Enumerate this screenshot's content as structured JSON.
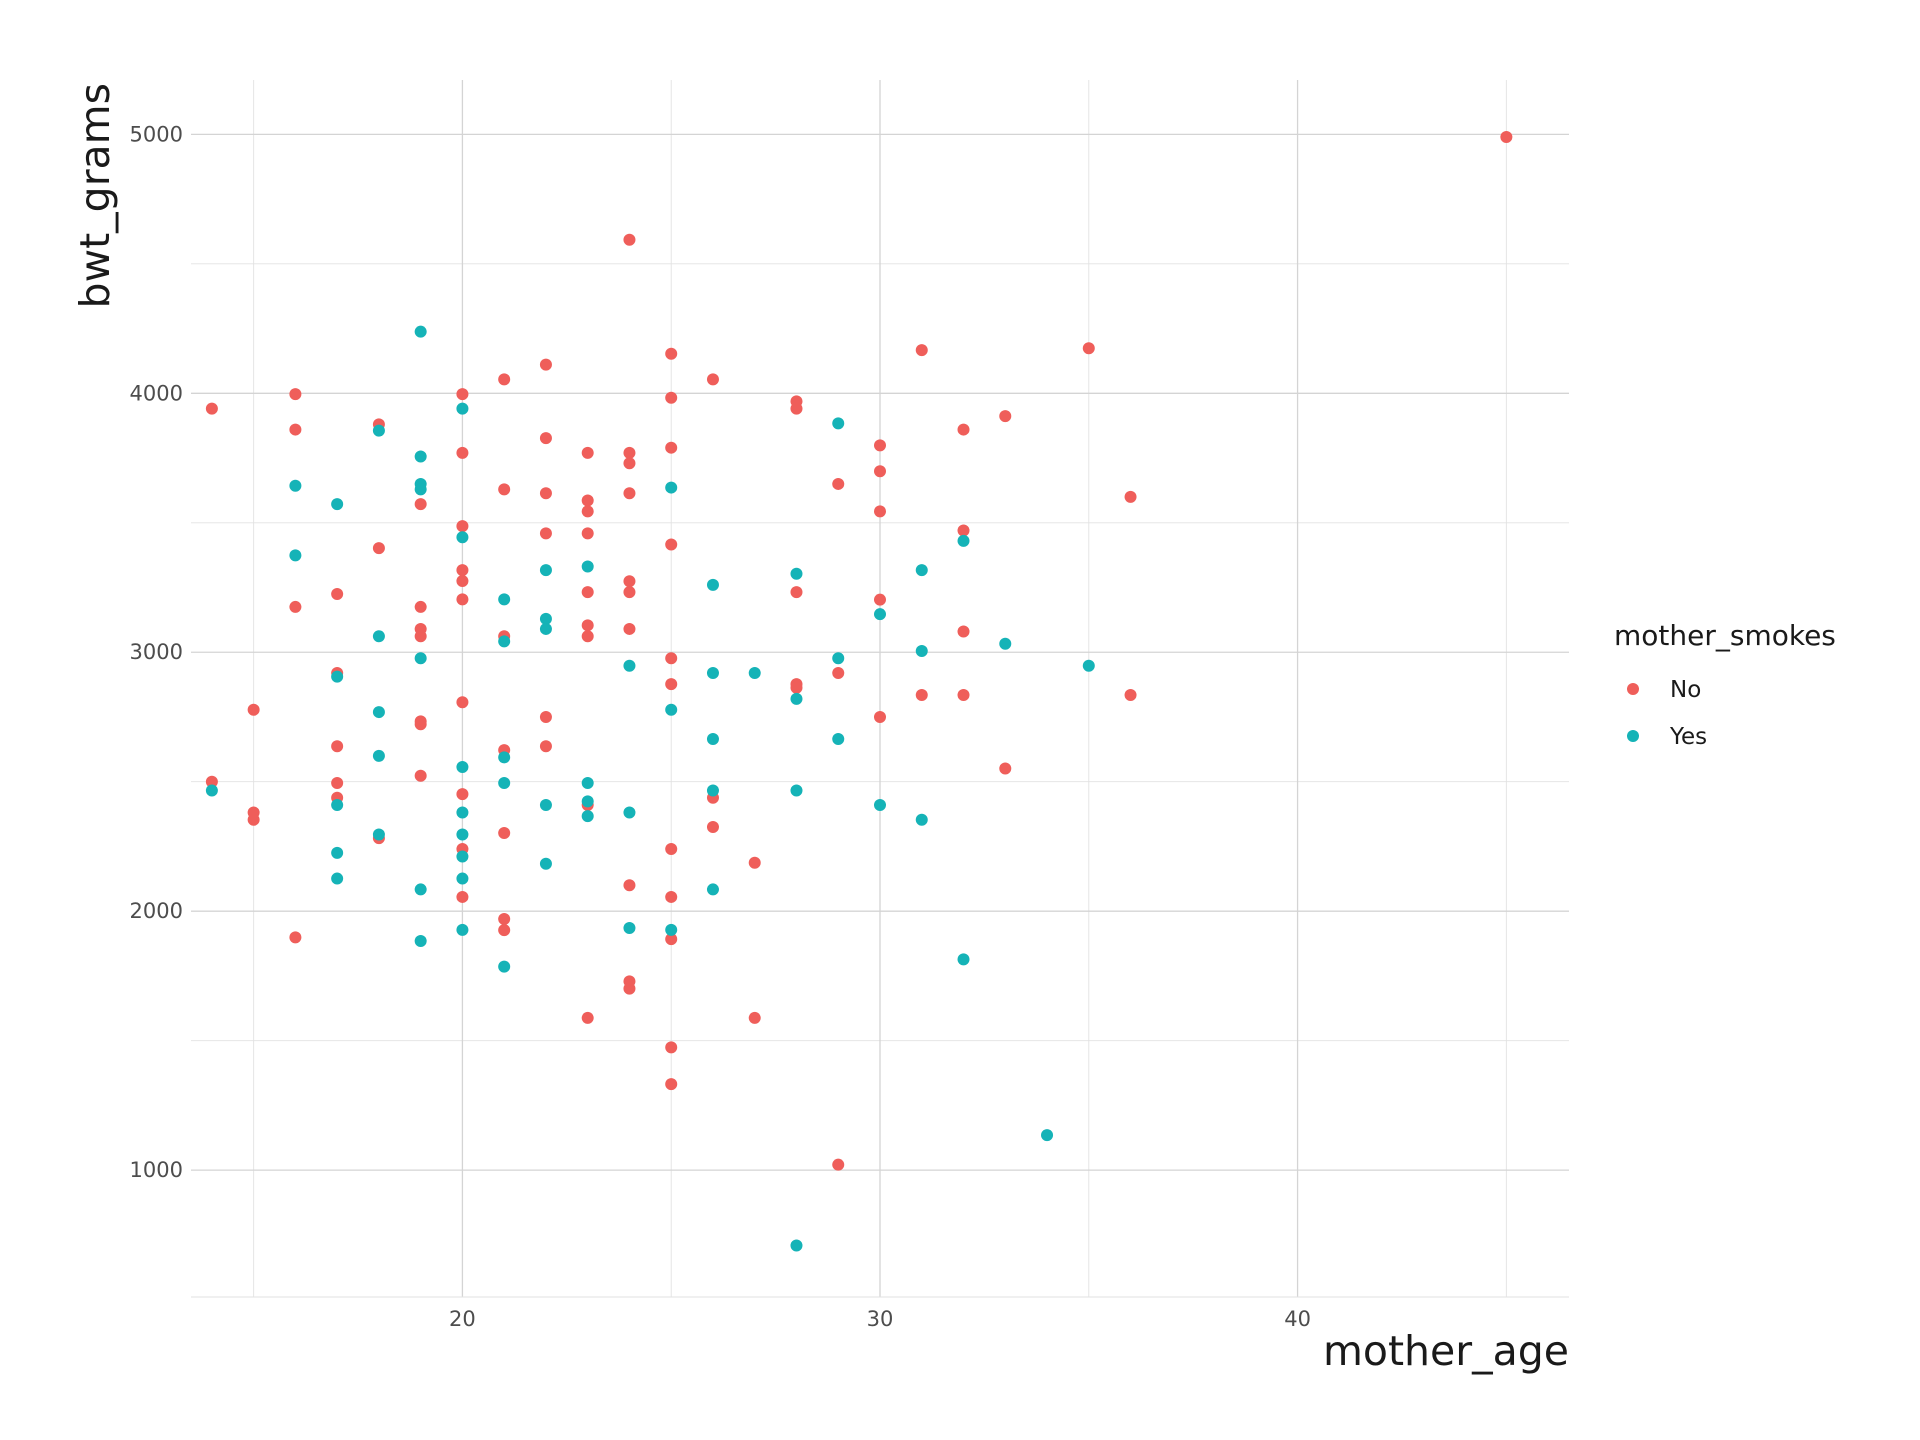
{
  "chart_data": {
    "type": "scatter",
    "title": "",
    "xlabel": "mother_age",
    "ylabel": "bwt_grams",
    "xlim": [
      13.5,
      46.5
    ],
    "ylim": [
      510,
      5210
    ],
    "x_ticks": [
      20,
      30,
      40
    ],
    "x_tick_labels": [
      "20",
      "30",
      "40"
    ],
    "x_minor_ticks": [
      15,
      25,
      35,
      45
    ],
    "y_ticks": [
      1000,
      2000,
      3000,
      4000,
      5000
    ],
    "y_tick_labels": [
      "1000",
      "2000",
      "3000",
      "4000",
      "5000"
    ],
    "y_minor_ticks": [
      1500,
      2500,
      3500,
      4500
    ],
    "grid": true,
    "legend": {
      "title": "mother_smokes",
      "position": "right",
      "entries": [
        "No",
        "Yes"
      ]
    },
    "colors": {
      "No": "#ef5e5a",
      "Yes": "#15b3b7"
    },
    "series": [
      {
        "name": "No",
        "points": [
          [
            14,
            3941
          ],
          [
            14,
            2500
          ],
          [
            15,
            2778
          ],
          [
            15,
            2381
          ],
          [
            15,
            2353
          ],
          [
            16,
            3997
          ],
          [
            16,
            3860
          ],
          [
            16,
            3175
          ],
          [
            16,
            1899
          ],
          [
            17,
            3225
          ],
          [
            17,
            2920
          ],
          [
            17,
            2637
          ],
          [
            17,
            2495
          ],
          [
            17,
            2438
          ],
          [
            18,
            3880
          ],
          [
            18,
            3402
          ],
          [
            18,
            2282
          ],
          [
            19,
            3572
          ],
          [
            19,
            3175
          ],
          [
            19,
            3090
          ],
          [
            19,
            3062
          ],
          [
            19,
            2733
          ],
          [
            19,
            2722
          ],
          [
            19,
            2523
          ],
          [
            20,
            3997
          ],
          [
            20,
            3770
          ],
          [
            20,
            3487
          ],
          [
            20,
            3317
          ],
          [
            20,
            3275
          ],
          [
            20,
            3204
          ],
          [
            20,
            2807
          ],
          [
            20,
            2452
          ],
          [
            20,
            2240
          ],
          [
            20,
            2055
          ],
          [
            21,
            4054
          ],
          [
            21,
            3629
          ],
          [
            21,
            3062
          ],
          [
            21,
            2622
          ],
          [
            21,
            2302
          ],
          [
            21,
            1970
          ],
          [
            21,
            1927
          ],
          [
            22,
            4111
          ],
          [
            22,
            3827
          ],
          [
            22,
            3614
          ],
          [
            22,
            3459
          ],
          [
            22,
            2750
          ],
          [
            22,
            2637
          ],
          [
            23,
            3770
          ],
          [
            23,
            3586
          ],
          [
            23,
            3544
          ],
          [
            23,
            3459
          ],
          [
            23,
            3232
          ],
          [
            23,
            3104
          ],
          [
            23,
            3062
          ],
          [
            23,
            2410
          ],
          [
            23,
            1588
          ],
          [
            24,
            4593
          ],
          [
            24,
            3770
          ],
          [
            24,
            3730
          ],
          [
            24,
            3614
          ],
          [
            24,
            3274
          ],
          [
            24,
            3232
          ],
          [
            24,
            3090
          ],
          [
            24,
            2100
          ],
          [
            24,
            1729
          ],
          [
            24,
            1701
          ],
          [
            25,
            4153
          ],
          [
            25,
            3983
          ],
          [
            25,
            3790
          ],
          [
            25,
            3416
          ],
          [
            25,
            2977
          ],
          [
            25,
            2877
          ],
          [
            25,
            2240
          ],
          [
            25,
            2055
          ],
          [
            25,
            1892
          ],
          [
            25,
            1474
          ],
          [
            25,
            1332
          ],
          [
            26,
            4054
          ],
          [
            26,
            2438
          ],
          [
            26,
            2325
          ],
          [
            27,
            2187
          ],
          [
            27,
            1588
          ],
          [
            28,
            3969
          ],
          [
            28,
            3941
          ],
          [
            28,
            3232
          ],
          [
            28,
            2877
          ],
          [
            28,
            2863
          ],
          [
            29,
            3650
          ],
          [
            29,
            2920
          ],
          [
            29,
            1021
          ],
          [
            30,
            3799
          ],
          [
            30,
            3699
          ],
          [
            30,
            3544
          ],
          [
            30,
            3203
          ],
          [
            30,
            2750
          ],
          [
            31,
            4167
          ],
          [
            31,
            2835
          ],
          [
            32,
            3860
          ],
          [
            32,
            3470
          ],
          [
            32,
            3080
          ],
          [
            32,
            2835
          ],
          [
            33,
            3912
          ],
          [
            33,
            2551
          ],
          [
            35,
            4174
          ],
          [
            36,
            3600
          ],
          [
            36,
            2835
          ],
          [
            45,
            4990
          ]
        ]
      },
      {
        "name": "Yes",
        "points": [
          [
            14,
            2466
          ],
          [
            16,
            3643
          ],
          [
            16,
            3374
          ],
          [
            17,
            3572
          ],
          [
            17,
            2906
          ],
          [
            17,
            2410
          ],
          [
            17,
            2225
          ],
          [
            17,
            2126
          ],
          [
            18,
            3856
          ],
          [
            18,
            3062
          ],
          [
            18,
            2769
          ],
          [
            18,
            2600
          ],
          [
            18,
            2296
          ],
          [
            19,
            4238
          ],
          [
            19,
            3756
          ],
          [
            19,
            3650
          ],
          [
            19,
            3629
          ],
          [
            19,
            2977
          ],
          [
            19,
            2084
          ],
          [
            19,
            1885
          ],
          [
            20,
            3941
          ],
          [
            20,
            3444
          ],
          [
            20,
            2557
          ],
          [
            20,
            2381
          ],
          [
            20,
            2296
          ],
          [
            20,
            2211
          ],
          [
            20,
            2126
          ],
          [
            20,
            1928
          ],
          [
            21,
            3204
          ],
          [
            21,
            3042
          ],
          [
            21,
            2594
          ],
          [
            21,
            2495
          ],
          [
            21,
            1786
          ],
          [
            22,
            3317
          ],
          [
            22,
            3129
          ],
          [
            22,
            3090
          ],
          [
            22,
            2410
          ],
          [
            22,
            2183
          ],
          [
            23,
            3331
          ],
          [
            23,
            2495
          ],
          [
            23,
            2424
          ],
          [
            23,
            2367
          ],
          [
            24,
            2948
          ],
          [
            24,
            2381
          ],
          [
            24,
            1935
          ],
          [
            25,
            3636
          ],
          [
            25,
            2778
          ],
          [
            25,
            1928
          ],
          [
            26,
            3260
          ],
          [
            26,
            2920
          ],
          [
            26,
            2665
          ],
          [
            26,
            2466
          ],
          [
            26,
            2084
          ],
          [
            27,
            2920
          ],
          [
            28,
            3303
          ],
          [
            28,
            2820
          ],
          [
            28,
            2466
          ],
          [
            28,
            709
          ],
          [
            29,
            3884
          ],
          [
            29,
            2977
          ],
          [
            29,
            2665
          ],
          [
            30,
            3147
          ],
          [
            30,
            2410
          ],
          [
            31,
            3317
          ],
          [
            31,
            3005
          ],
          [
            31,
            2353
          ],
          [
            32,
            3430
          ],
          [
            32,
            1814
          ],
          [
            33,
            3033
          ],
          [
            34,
            1135
          ],
          [
            35,
            2948
          ]
        ]
      }
    ]
  }
}
